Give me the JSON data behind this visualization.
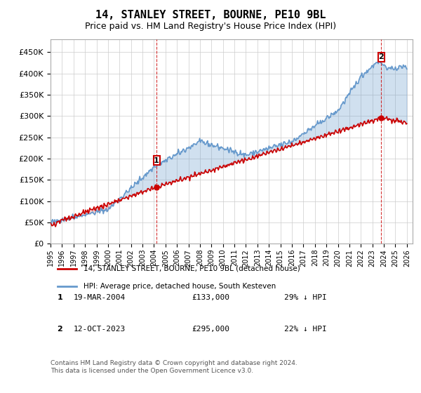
{
  "title": "14, STANLEY STREET, BOURNE, PE10 9BL",
  "subtitle": "Price paid vs. HM Land Registry's House Price Index (HPI)",
  "legend_line1": "14, STANLEY STREET, BOURNE, PE10 9BL (detached house)",
  "legend_line2": "HPI: Average price, detached house, South Kesteven",
  "footnote1": "Contains HM Land Registry data © Crown copyright and database right 2024.",
  "footnote2": "This data is licensed under the Open Government Licence v3.0.",
  "marker1_label": "1",
  "marker1_date": "19-MAR-2004",
  "marker1_price": "£133,000",
  "marker1_hpi": "29% ↓ HPI",
  "marker2_label": "2",
  "marker2_date": "12-OCT-2023",
  "marker2_price": "£295,000",
  "marker2_hpi": "22% ↓ HPI",
  "hpi_color": "#6699cc",
  "price_color": "#cc0000",
  "marker_color": "#cc0000",
  "vline_color": "#cc0000",
  "grid_color": "#cccccc",
  "bg_color": "#ffffff",
  "ylim": [
    0,
    480000
  ],
  "yticks": [
    0,
    50000,
    100000,
    150000,
    200000,
    250000,
    300000,
    350000,
    400000,
    450000
  ],
  "xlim_start": 1995.0,
  "xlim_end": 2026.5,
  "marker1_x": 2004.22,
  "marker1_y": 133000,
  "marker2_x": 2023.78,
  "marker2_y": 295000
}
